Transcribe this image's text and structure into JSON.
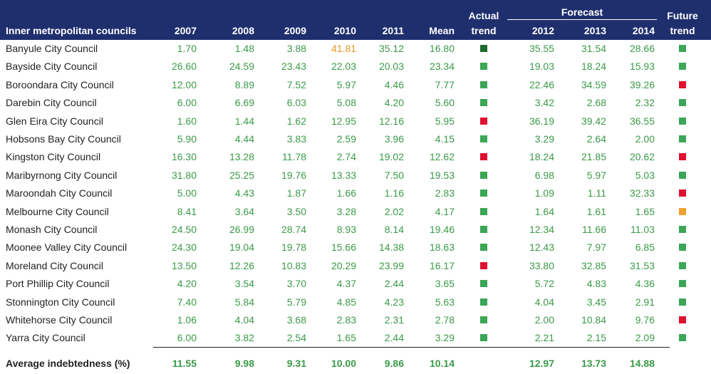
{
  "header": {
    "title": "Inner metropolitan councils",
    "columns": [
      "2007",
      "2008",
      "2009",
      "2010",
      "2011",
      "Mean"
    ],
    "actual_trend": [
      "Actual",
      "trend"
    ],
    "forecast": "Forecast",
    "forecast_columns": [
      "2012",
      "2013",
      "2014"
    ],
    "future_trend": [
      "Future",
      "trend"
    ]
  },
  "text_color": "#3a9a48",
  "rows": [
    {
      "name": "Banyule City Council",
      "actual": [
        "1.70",
        "1.48",
        "3.88",
        "41.81",
        "35.12",
        "16.80"
      ],
      "forecast": [
        "35.55",
        "31.54",
        "28.66"
      ],
      "actual_trend_color": "#1f6b2c",
      "future_trend_color": "#3aa656",
      "highlight": {
        "column": 3,
        "color": "#e8961e"
      }
    },
    {
      "name": "Bayside City Council",
      "actual": [
        "26.60",
        "24.59",
        "23.43",
        "22.03",
        "20.03",
        "23.34"
      ],
      "forecast": [
        "19.03",
        "18.24",
        "15.93"
      ],
      "actual_trend_color": "#3aa656",
      "future_trend_color": "#3aa656"
    },
    {
      "name": "Boroondara City Council",
      "actual": [
        "12.00",
        "8.89",
        "7.52",
        "5.97",
        "4.46",
        "7.77"
      ],
      "forecast": [
        "22.46",
        "34.59",
        "39.26"
      ],
      "actual_trend_color": "#3aa656",
      "future_trend_color": "#e0102f"
    },
    {
      "name": "Darebin City Council",
      "actual": [
        "6.00",
        "6.69",
        "6.03",
        "5.08",
        "4.20",
        "5.60"
      ],
      "forecast": [
        "3.42",
        "2.68",
        "2.32"
      ],
      "actual_trend_color": "#3aa656",
      "future_trend_color": "#3aa656"
    },
    {
      "name": "Glen Eira City Council",
      "actual": [
        "1.60",
        "1.44",
        "1.62",
        "12.95",
        "12.16",
        "5.95"
      ],
      "forecast": [
        "36.19",
        "39.42",
        "36.55"
      ],
      "actual_trend_color": "#e0102f",
      "future_trend_color": "#3aa656"
    },
    {
      "name": "Hobsons Bay City Council",
      "actual": [
        "5.90",
        "4.44",
        "3.83",
        "2.59",
        "3.96",
        "4.15"
      ],
      "forecast": [
        "3.29",
        "2.64",
        "2.00"
      ],
      "actual_trend_color": "#3aa656",
      "future_trend_color": "#3aa656"
    },
    {
      "name": "Kingston City Council",
      "actual": [
        "16.30",
        "13.28",
        "11.78",
        "2.74",
        "19.02",
        "12.62"
      ],
      "forecast": [
        "18.24",
        "21.85",
        "20.62"
      ],
      "actual_trend_color": "#e0102f",
      "future_trend_color": "#e0102f"
    },
    {
      "name": "Maribyrnong City Council",
      "actual": [
        "31.80",
        "25.25",
        "19.76",
        "13.33",
        "7.50",
        "19.53"
      ],
      "forecast": [
        "6.98",
        "5.97",
        "5.03"
      ],
      "actual_trend_color": "#3aa656",
      "future_trend_color": "#3aa656"
    },
    {
      "name": "Maroondah City Council",
      "actual": [
        "5.00",
        "4.43",
        "1.87",
        "1.66",
        "1.16",
        "2.83"
      ],
      "forecast": [
        "1.09",
        "1.11",
        "32.33"
      ],
      "actual_trend_color": "#3aa656",
      "future_trend_color": "#e0102f"
    },
    {
      "name": "Melbourne City Council",
      "actual": [
        "8.41",
        "3.64",
        "3.50",
        "3.28",
        "2.02",
        "4.17"
      ],
      "forecast": [
        "1.64",
        "1.61",
        "1.65"
      ],
      "actual_trend_color": "#3aa656",
      "future_trend_color": "#f0a030"
    },
    {
      "name": "Monash City Council",
      "actual": [
        "24.50",
        "26.99",
        "28.74",
        "8.93",
        "8.14",
        "19.46"
      ],
      "forecast": [
        "12.34",
        "11.66",
        "11.03"
      ],
      "actual_trend_color": "#3aa656",
      "future_trend_color": "#3aa656"
    },
    {
      "name": "Moonee Valley City Council",
      "actual": [
        "24.30",
        "19.04",
        "19.78",
        "15.66",
        "14.38",
        "18.63"
      ],
      "forecast": [
        "12.43",
        "7.97",
        "6.85"
      ],
      "actual_trend_color": "#3aa656",
      "future_trend_color": "#3aa656"
    },
    {
      "name": "Moreland City Council",
      "actual": [
        "13.50",
        "12.26",
        "10.83",
        "20.29",
        "23.99",
        "16.17"
      ],
      "forecast": [
        "33.80",
        "32.85",
        "31.53"
      ],
      "actual_trend_color": "#e0102f",
      "future_trend_color": "#3aa656"
    },
    {
      "name": "Port Phillip City Council",
      "actual": [
        "4.20",
        "3.54",
        "3.70",
        "4.37",
        "2.44",
        "3.65"
      ],
      "forecast": [
        "5.72",
        "4.83",
        "4.36"
      ],
      "actual_trend_color": "#3aa656",
      "future_trend_color": "#3aa656"
    },
    {
      "name": "Stonnington City Council",
      "actual": [
        "7.40",
        "5.84",
        "5.79",
        "4.85",
        "4.23",
        "5.63"
      ],
      "forecast": [
        "4.04",
        "3.45",
        "2.91"
      ],
      "actual_trend_color": "#3aa656",
      "future_trend_color": "#3aa656"
    },
    {
      "name": "Whitehorse City Council",
      "actual": [
        "1.06",
        "4.04",
        "3.68",
        "2.83",
        "2.31",
        "2.78"
      ],
      "forecast": [
        "2.00",
        "10.84",
        "9.76"
      ],
      "actual_trend_color": "#3aa656",
      "future_trend_color": "#e0102f"
    },
    {
      "name": "Yarra City Council",
      "actual": [
        "6.00",
        "3.82",
        "2.54",
        "1.65",
        "2.44",
        "3.29"
      ],
      "forecast": [
        "2.21",
        "2.15",
        "2.09"
      ],
      "actual_trend_color": "#3aa656",
      "future_trend_color": "#3aa656"
    }
  ],
  "average": {
    "label": "Average indebtedness (%)",
    "actual": [
      "11.55",
      "9.98",
      "9.31",
      "10.00",
      "9.86",
      "10.14"
    ],
    "forecast": [
      "12.97",
      "13.73",
      "14.88"
    ]
  }
}
